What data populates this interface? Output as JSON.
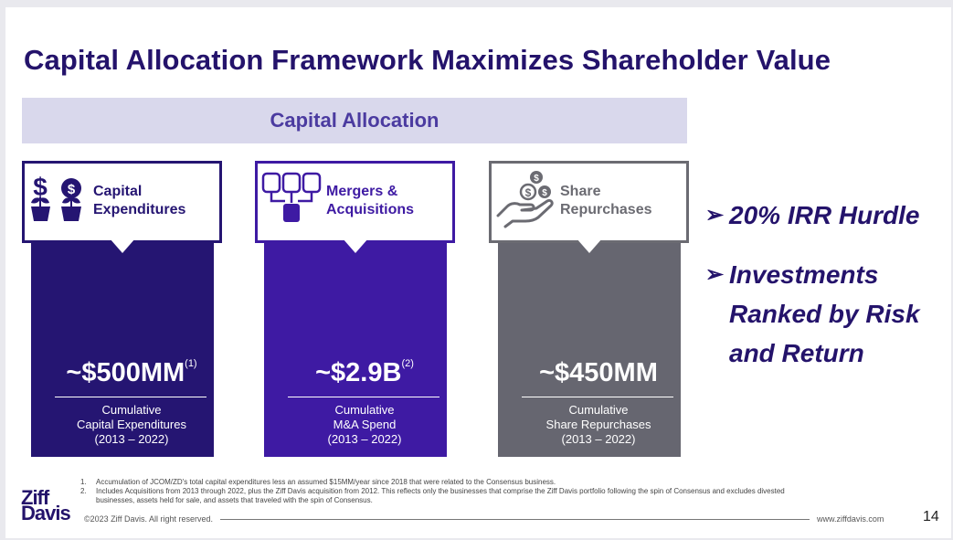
{
  "title": "Capital Allocation Framework Maximizes Shareholder Value",
  "band_label": "Capital Allocation",
  "columns": [
    {
      "icon": "money-plant-icon",
      "caption_line1": "Capital",
      "caption_line2": "Expenditures",
      "amount": "~$500MM",
      "footnote_ref": "(1)",
      "desc_line1": "Cumulative",
      "desc_line2": "Capital Expenditures",
      "desc_line3": "(2013 – 2022)",
      "color": "#251572"
    },
    {
      "icon": "merge-boxes-icon",
      "caption_line1": "Mergers &",
      "caption_line2": "Acquisitions",
      "amount": "~$2.9B",
      "footnote_ref": "(2)",
      "desc_line1": "Cumulative",
      "desc_line2": "M&A Spend",
      "desc_line3": "(2013 – 2022)",
      "color": "#3e1aa3"
    },
    {
      "icon": "hand-coins-icon",
      "caption_line1": "Share",
      "caption_line2": "Repurchases",
      "amount": "~$450MM",
      "footnote_ref": "",
      "desc_line1": "Cumulative",
      "desc_line2": "Share Repurchases",
      "desc_line3": "(2013 – 2022)",
      "color": "#666670"
    }
  ],
  "bullets": [
    {
      "lines": [
        "20% IRR Hurdle"
      ]
    },
    {
      "lines": [
        "Investments",
        "Ranked by Risk",
        "and Return"
      ]
    }
  ],
  "footnotes": [
    {
      "num": "1.",
      "text": "Accumulation of JCOM/ZD's total capital expenditures less an assumed $15MM/year since 2018 that were related to the Consensus business."
    },
    {
      "num": "2.",
      "text": "Includes Acquisitions from 2013 through 2022, plus the Ziff Davis acquisition from 2012. This reflects only the businesses that comprise the Ziff Davis portfolio following the spin of Consensus and excludes divested businesses, assets held for sale, and assets that traveled with the spin of Consensus."
    }
  ],
  "logo": {
    "line1": "Ziff",
    "line2": "Davis"
  },
  "copyright": "©2023 Ziff Davis. All right reserved.",
  "url": "www.ziffdavis.com",
  "page_number": "14"
}
